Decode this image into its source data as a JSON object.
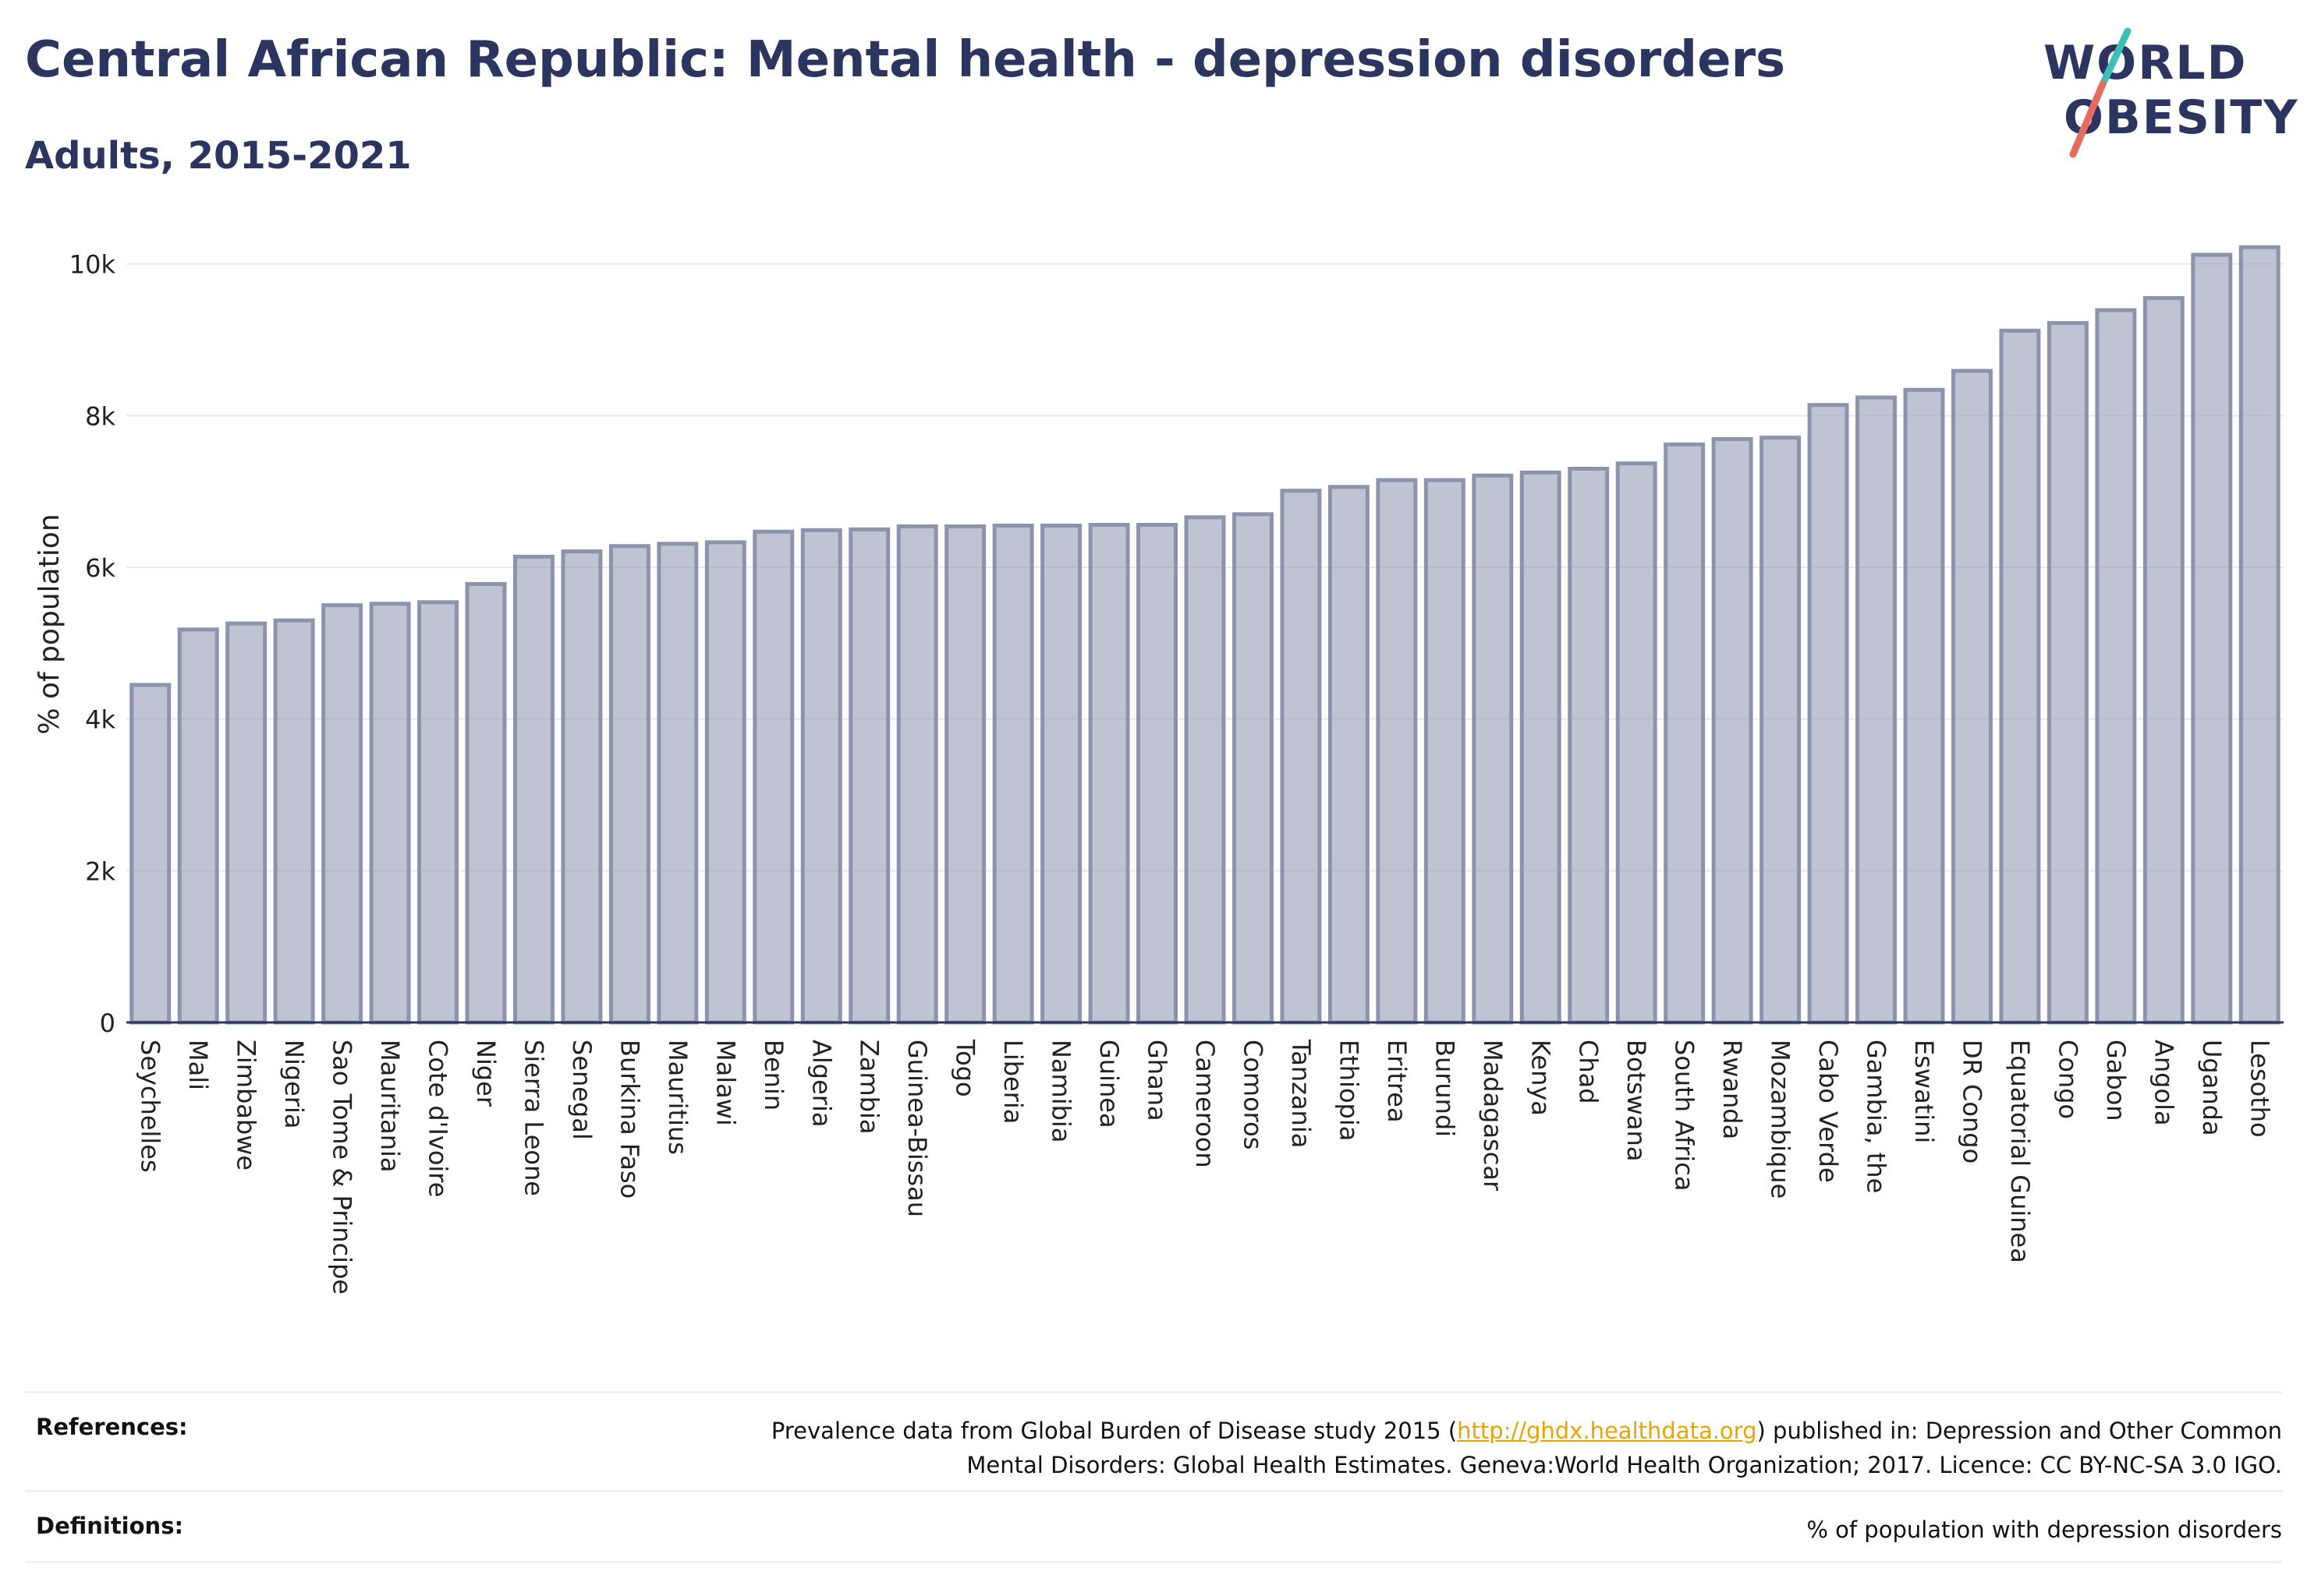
{
  "header": {
    "title": "Central African Republic: Mental health - depression disorders",
    "subtitle": "Adults, 2015-2021"
  },
  "logo": {
    "line1": "WORLD",
    "line2": "OBESITY",
    "accent_teal": "#3dbfb8",
    "accent_red": "#e56b5d"
  },
  "chart_data": {
    "type": "bar",
    "ylabel": "% of population",
    "ylim": [
      0,
      10500
    ],
    "y_ticks": [
      0,
      2000,
      4000,
      6000,
      8000,
      10000
    ],
    "y_tick_labels": [
      "0",
      "2k",
      "4k",
      "6k",
      "8k",
      "10k"
    ],
    "grid": true,
    "bar_color": "#8c93ad",
    "categories": [
      "Seychelles",
      "Mali",
      "Zimbabwe",
      "Nigeria",
      "Sao Tome & Principe",
      "Mauritania",
      "Cote d'Ivoire",
      "Niger",
      "Sierra Leone",
      "Senegal",
      "Burkina Faso",
      "Mauritius",
      "Malawi",
      "Benin",
      "Algeria",
      "Zambia",
      "Guinea-Bissau",
      "Togo",
      "Liberia",
      "Namibia",
      "Guinea",
      "Ghana",
      "Cameroon",
      "Comoros",
      "Tanzania",
      "Ethiopia",
      "Eritrea",
      "Burundi",
      "Madagascar",
      "Kenya",
      "Chad",
      "Botswana",
      "South Africa",
      "Rwanda",
      "Mozambique",
      "Cabo Verde",
      "Gambia, the",
      "Eswatini",
      "DR Congo",
      "Equatorial Guinea",
      "Congo",
      "Gabon",
      "Angola",
      "Uganda",
      "Lesotho"
    ],
    "values": [
      4450,
      5180,
      5260,
      5300,
      5500,
      5520,
      5540,
      5780,
      6140,
      6210,
      6280,
      6310,
      6330,
      6470,
      6490,
      6500,
      6540,
      6540,
      6550,
      6550,
      6560,
      6560,
      6660,
      6700,
      7010,
      7060,
      7150,
      7150,
      7210,
      7250,
      7300,
      7370,
      7620,
      7690,
      7710,
      8140,
      8240,
      8340,
      8590,
      9120,
      9220,
      9390,
      9550,
      10120,
      10220
    ]
  },
  "footer": {
    "references_label": "References:",
    "references_pre": "Prevalence data from Global Burden of Disease study 2015 (",
    "references_link": "http://ghdx.healthdata.org",
    "references_post": ") published in: Depression and Other Common",
    "references_line2": "Mental Disorders: Global Health Estimates. Geneva:World Health Organization; 2017. Licence: CC BY-NC-SA 3.0 IGO.",
    "definitions_label": "Definitions:",
    "definitions_text": "% of population with depression disorders"
  }
}
